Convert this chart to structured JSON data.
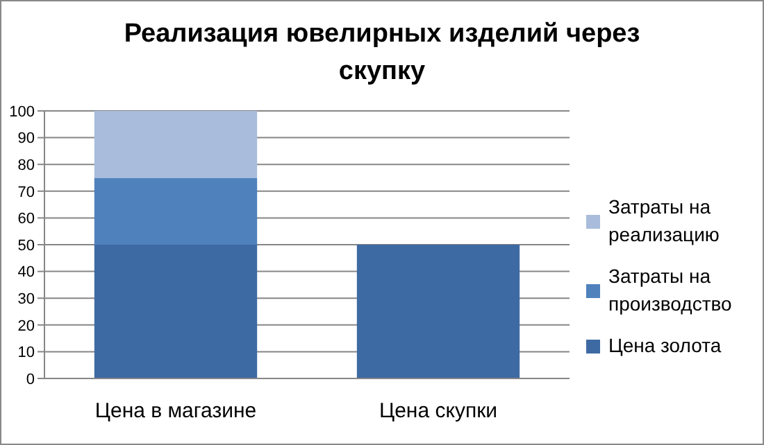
{
  "chart_data": {
    "type": "bar",
    "title": "Реализация ювелирных изделий через скупку",
    "categories": [
      "Цена в магазине",
      "Цена скупки"
    ],
    "stacked": true,
    "series": [
      {
        "name": "Цена золота",
        "color": "#3e6aa3",
        "values": [
          50,
          50
        ]
      },
      {
        "name": "Затраты на производство",
        "color": "#4f81bd",
        "values": [
          25,
          0
        ]
      },
      {
        "name": "Затраты на реализацию",
        "color": "#a9bcdb",
        "values": [
          25,
          0
        ]
      }
    ],
    "ylim": [
      0,
      100
    ],
    "yticks": [
      0,
      10,
      20,
      30,
      40,
      50,
      60,
      70,
      80,
      90,
      100
    ],
    "grid": "y",
    "legend": "right"
  }
}
